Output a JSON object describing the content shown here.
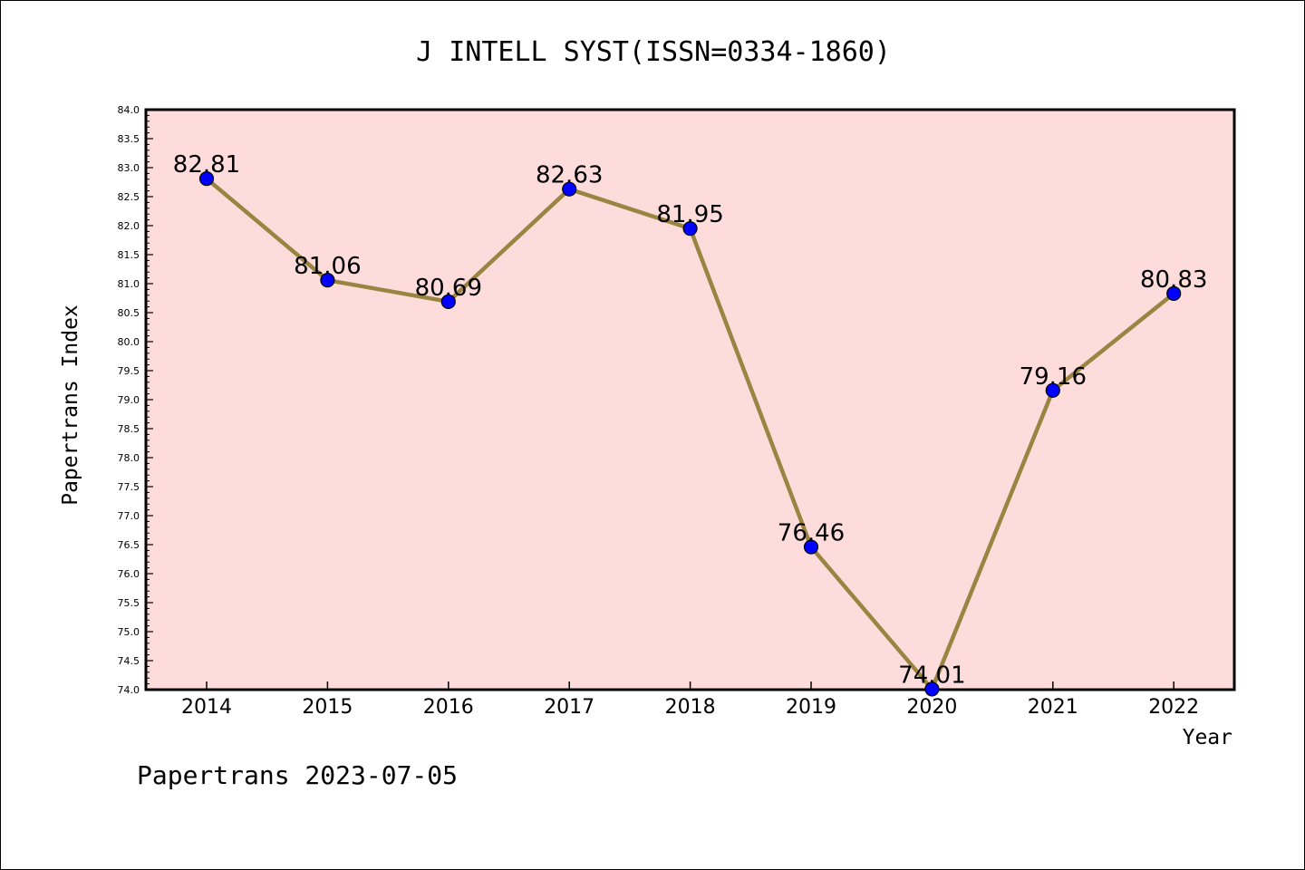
{
  "chart_data": {
    "type": "line",
    "title": "J INTELL SYST(ISSN=0334-1860)",
    "xlabel": "Year",
    "ylabel": "Papertrans Index",
    "categories": [
      "2014",
      "2015",
      "2016",
      "2017",
      "2018",
      "2019",
      "2020",
      "2021",
      "2022"
    ],
    "series": [
      {
        "values": [
          82.81,
          81.06,
          80.69,
          82.63,
          81.95,
          76.46,
          74.01,
          79.16,
          80.83
        ]
      }
    ],
    "data_labels": [
      "82.81",
      "81.06",
      "80.69",
      "82.63",
      "81.95",
      "76.46",
      "74.01",
      "79.16",
      "80.83"
    ],
    "ylim": [
      74.0,
      84.0
    ],
    "y_ticks": [
      "74.0",
      "74.5",
      "75.0",
      "75.5",
      "76.0",
      "76.5",
      "77.0",
      "77.5",
      "78.0",
      "78.5",
      "79.0",
      "79.5",
      "80.0",
      "80.5",
      "81.0",
      "81.5",
      "82.0",
      "82.5",
      "83.0",
      "83.5",
      "84.0"
    ],
    "grid": false,
    "footer": "Papertrans 2023-07-05",
    "colors": {
      "plot_background": "#ffdcdc",
      "line": "#9a8442",
      "marker": "#0000ff",
      "marker_edge": "#000000"
    }
  }
}
